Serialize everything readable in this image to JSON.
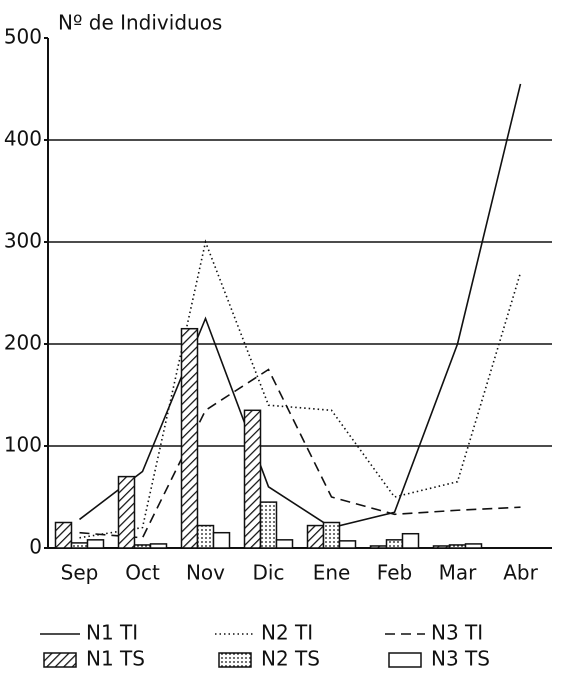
{
  "chart_data": {
    "type": "combo",
    "title": "Nº de Individuos",
    "categories": [
      "Sep",
      "Oct",
      "Nov",
      "Dic",
      "Ene",
      "Feb",
      "Mar",
      "Abr"
    ],
    "ylim": [
      0,
      500
    ],
    "yticks": [
      0,
      100,
      200,
      300,
      400,
      500
    ],
    "grid": true,
    "series": [
      {
        "name": "N1 TI",
        "type": "line",
        "dash": "solid",
        "color": "#111",
        "values": [
          28,
          75,
          225,
          60,
          20,
          35,
          200,
          455
        ]
      },
      {
        "name": "N2 TI",
        "type": "line",
        "dash": "dotted",
        "color": "#111",
        "values": [
          10,
          20,
          300,
          140,
          135,
          50,
          65,
          270
        ]
      },
      {
        "name": "N3 TI",
        "type": "line",
        "dash": "dashed",
        "color": "#111",
        "values": [
          15,
          10,
          135,
          175,
          50,
          33,
          37,
          40
        ]
      },
      {
        "name": "N1 TS",
        "type": "bar",
        "pattern": "hatch",
        "color": "#111",
        "values": [
          25,
          70,
          215,
          135,
          22,
          2,
          2,
          null
        ]
      },
      {
        "name": "N2 TS",
        "type": "bar",
        "pattern": "dots",
        "color": "#111",
        "values": [
          5,
          3,
          22,
          45,
          25,
          8,
          3,
          null
        ]
      },
      {
        "name": "N3 TS",
        "type": "bar",
        "pattern": "empty",
        "color": "#111",
        "values": [
          8,
          4,
          15,
          8,
          7,
          14,
          4,
          null
        ]
      }
    ]
  }
}
